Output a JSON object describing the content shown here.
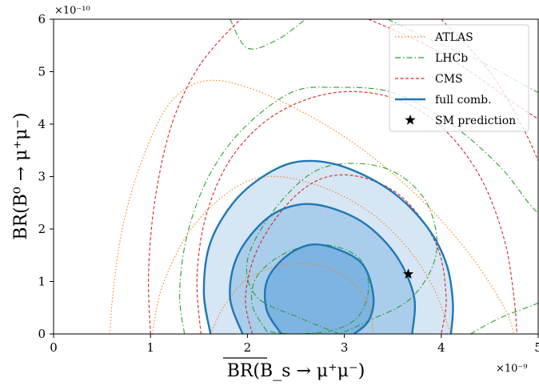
{
  "chart_data": {
    "type": "contour",
    "title": "",
    "xlabel": "BR(B_s → μ⁺μ⁻)",
    "ylabel": "BR(B⁰ → μ⁺μ⁻)",
    "x_scale_label": "×10⁻⁹",
    "y_scale_label": "×10⁻¹⁰",
    "xlim": [
      0,
      5
    ],
    "ylim": [
      0,
      6
    ],
    "xticks": [
      "0",
      "1",
      "2",
      "3",
      "4",
      "5"
    ],
    "yticks": [
      "0",
      "1",
      "2",
      "3",
      "4",
      "5",
      "6"
    ],
    "legend_position": "top-right",
    "colors": {
      "atlas": "#ff7f0e",
      "lhcb": "#2ca02c",
      "cms": "#d62728",
      "full_comb": "#1f77b4",
      "fill_outer": "#d6e6f5",
      "fill_middle": "#a9cdea",
      "fill_inner": "#7db4e2"
    },
    "series": [
      {
        "name": "ATLAS",
        "style": "dotted",
        "contours": [
          {
            "level": "inner",
            "points": [
              [
                1.62,
                0
              ],
              [
                1.75,
                0.5
              ],
              [
                2.0,
                1.05
              ],
              [
                2.4,
                1.32
              ],
              [
                2.8,
                1.28
              ],
              [
                3.1,
                0.95
              ],
              [
                3.25,
                0.55
              ],
              [
                3.3,
                0
              ]
            ]
          },
          {
            "level": "middle",
            "points": [
              [
                1.02,
                0
              ],
              [
                1.12,
                0.9
              ],
              [
                1.4,
                1.95
              ],
              [
                1.8,
                2.7
              ],
              [
                2.2,
                3.0
              ],
              [
                2.7,
                2.85
              ],
              [
                3.2,
                2.4
              ],
              [
                3.6,
                1.75
              ],
              [
                3.9,
                0.95
              ],
              [
                4.1,
                0
              ]
            ]
          },
          {
            "level": "outer",
            "points": [
              [
                0.58,
                0
              ],
              [
                0.62,
                0.9
              ],
              [
                0.72,
                2.1
              ],
              [
                0.92,
                3.35
              ],
              [
                1.2,
                4.4
              ],
              [
                1.55,
                4.82
              ],
              [
                2.0,
                4.7
              ],
              [
                2.6,
                4.2
              ],
              [
                3.2,
                3.5
              ],
              [
                3.8,
                2.55
              ],
              [
                4.3,
                1.5
              ],
              [
                4.65,
                0.5
              ],
              [
                4.75,
                0
              ]
            ]
          }
        ]
      },
      {
        "name": "LHCb",
        "style": "dashdot",
        "contours": [
          {
            "level": "inner",
            "points": [
              [
                2.2,
                0.05
              ],
              [
                2.05,
                0.55
              ],
              [
                2.1,
                1.1
              ],
              [
                2.4,
                1.55
              ],
              [
                2.8,
                1.7
              ],
              [
                3.15,
                1.45
              ],
              [
                3.25,
                0.9
              ],
              [
                3.15,
                0.35
              ],
              [
                2.9,
                0.08
              ],
              [
                2.5,
                0.0
              ],
              [
                2.2,
                0.05
              ]
            ]
          },
          {
            "level": "middle",
            "points": [
              [
                2.95,
                0
              ],
              [
                2.55,
                0.3
              ],
              [
                2.1,
                0.7
              ],
              [
                2.0,
                1.4
              ],
              [
                2.25,
                2.3
              ],
              [
                2.65,
                3.05
              ],
              [
                3.05,
                3.25
              ],
              [
                3.5,
                3.1
              ],
              [
                3.85,
                2.5
              ],
              [
                3.95,
                1.55
              ],
              [
                3.7,
                0.7
              ],
              [
                3.25,
                0.25
              ],
              [
                2.95,
                0
              ]
            ]
          },
          {
            "level": "outer",
            "points": [
              [
                1.35,
                0
              ],
              [
                1.3,
                0.8
              ],
              [
                1.38,
                1.9
              ],
              [
                1.6,
                3.0
              ],
              [
                1.95,
                3.9
              ],
              [
                2.45,
                4.6
              ],
              [
                2.9,
                4.7
              ],
              [
                3.5,
                4.6
              ],
              [
                4.1,
                4.0
              ],
              [
                4.6,
                3.2
              ],
              [
                4.9,
                2.5
              ],
              [
                5.0,
                2.3
              ]
            ]
          },
          {
            "level": "outer-right",
            "points": [
              [
                4.3,
                0
              ],
              [
                4.6,
                0.3
              ],
              [
                4.95,
                0.55
              ],
              [
                5.0,
                0.6
              ]
            ]
          },
          {
            "level": "outer-top",
            "points": [
              [
                1.82,
                6.0
              ],
              [
                2.0,
                5.45
              ],
              [
                2.3,
                5.6
              ],
              [
                2.6,
                6.0
              ]
            ]
          },
          {
            "level": "outer-top2",
            "points": [
              [
                3.45,
                6.0
              ],
              [
                3.9,
                5.6
              ],
              [
                4.4,
                5.2
              ],
              [
                4.8,
                4.8
              ],
              [
                5.0,
                4.6
              ]
            ]
          }
        ]
      },
      {
        "name": "CMS",
        "style": "dashed",
        "contours": [
          {
            "level": "inner",
            "points": [
              [
                2.05,
                0
              ],
              [
                1.98,
                0.7
              ],
              [
                2.1,
                1.6
              ],
              [
                2.4,
                2.45
              ],
              [
                2.75,
                2.95
              ],
              [
                3.15,
                3.0
              ],
              [
                3.6,
                2.6
              ],
              [
                3.95,
                1.7
              ],
              [
                4.05,
                0.7
              ],
              [
                4.0,
                0
              ]
            ]
          },
          {
            "level": "outer",
            "points": [
              [
                1.0,
                0
              ],
              [
                0.98,
                1.2
              ],
              [
                1.05,
                2.6
              ],
              [
                1.22,
                4.0
              ],
              [
                1.5,
                5.1
              ],
              [
                1.9,
                5.95
              ],
              [
                2.0,
                6.0
              ]
            ]
          },
          {
            "level": "outer-mid",
            "points": [
              [
                1.52,
                0
              ],
              [
                1.48,
                1.1
              ],
              [
                1.58,
                2.3
              ],
              [
                1.85,
                3.4
              ],
              [
                2.3,
                4.2
              ],
              [
                2.9,
                4.6
              ],
              [
                3.5,
                4.5
              ],
              [
                4.0,
                3.95
              ],
              [
                4.4,
                3.0
              ],
              [
                4.65,
                1.8
              ],
              [
                4.75,
                0.7
              ],
              [
                4.78,
                0
              ]
            ]
          },
          {
            "level": "outer-top",
            "points": [
              [
                3.25,
                6.0
              ],
              [
                3.8,
                5.55
              ],
              [
                4.3,
                5.0
              ],
              [
                4.75,
                4.4
              ],
              [
                5.0,
                4.1
              ]
            ]
          },
          {
            "level": "outer-right",
            "points": [
              [
                4.0,
                6.0
              ],
              [
                4.5,
                5.0
              ],
              [
                4.85,
                3.9
              ],
              [
                5.0,
                3.3
              ]
            ]
          }
        ]
      },
      {
        "name": "full comb.",
        "style": "solid",
        "contours": [
          {
            "level": "1sigma",
            "points": [
              [
                2.35,
                0
              ],
              [
                2.2,
                0.45
              ],
              [
                2.2,
                1.0
              ],
              [
                2.38,
                1.45
              ],
              [
                2.65,
                1.7
              ],
              [
                2.95,
                1.6
              ],
              [
                3.2,
                1.3
              ],
              [
                3.3,
                0.7
              ],
              [
                3.25,
                0.25
              ],
              [
                3.1,
                0
              ]
            ]
          },
          {
            "level": "2sigma",
            "points": [
              [
                1.95,
                0
              ],
              [
                1.82,
                0.7
              ],
              [
                1.9,
                1.5
              ],
              [
                2.2,
                2.2
              ],
              [
                2.55,
                2.47
              ],
              [
                2.9,
                2.38
              ],
              [
                3.25,
                2.05
              ],
              [
                3.55,
                1.45
              ],
              [
                3.72,
                0.7
              ],
              [
                3.7,
                0
              ]
            ]
          },
          {
            "level": "3sigma",
            "points": [
              [
                1.62,
                0
              ],
              [
                1.55,
                0.8
              ],
              [
                1.62,
                1.75
              ],
              [
                1.9,
                2.6
              ],
              [
                2.3,
                3.15
              ],
              [
                2.65,
                3.3
              ],
              [
                3.05,
                3.15
              ],
              [
                3.5,
                2.7
              ],
              [
                3.85,
                2.05
              ],
              [
                4.05,
                1.35
              ],
              [
                4.12,
                0.6
              ],
              [
                4.1,
                0
              ]
            ]
          }
        ]
      },
      {
        "name": "SM prediction",
        "style": "marker",
        "points": [
          [
            3.66,
            1.14
          ]
        ]
      }
    ]
  },
  "legend": {
    "items": [
      {
        "label": "ATLAS"
      },
      {
        "label": "LHCb"
      },
      {
        "label": "CMS"
      },
      {
        "label": "full comb."
      },
      {
        "label": "SM prediction"
      }
    ]
  }
}
